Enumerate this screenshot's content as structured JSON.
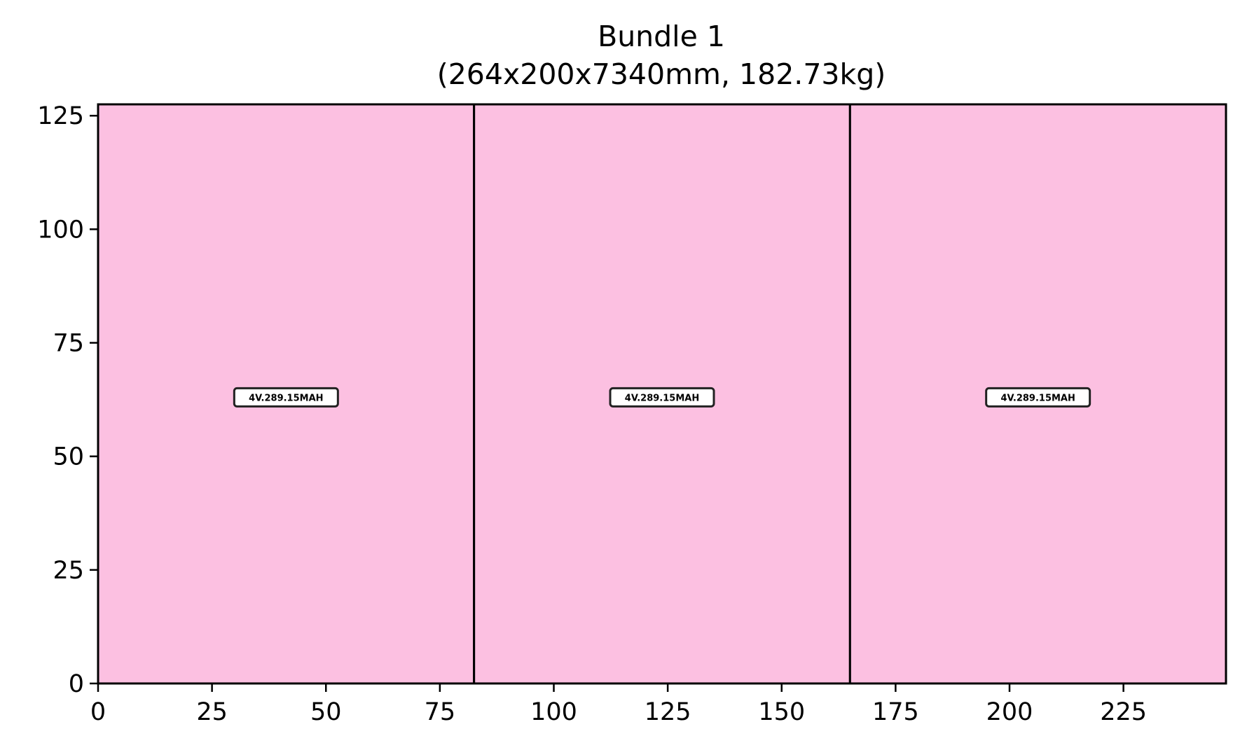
{
  "chart_data": {
    "type": "bar",
    "title_lines": [
      "Bundle 1",
      "(264x200x7340mm, 182.73kg)"
    ],
    "xlabel": "",
    "ylabel": "",
    "xlim": [
      0,
      247.5
    ],
    "ylim": [
      0,
      127.5
    ],
    "xticks": [
      "0",
      "25",
      "50",
      "75",
      "100",
      "125",
      "150",
      "175",
      "200",
      "225"
    ],
    "yticks": [
      "0",
      "25",
      "50",
      "75",
      "100",
      "125"
    ],
    "grid": false,
    "fill_color": "#fcc0e1",
    "edge_color": "#000000",
    "boxes": [
      {
        "label": "4V.289.15MAH",
        "x0": 0,
        "x1": 82.5,
        "y0": 0,
        "y1": 127.5
      },
      {
        "label": "4V.289.15MAH",
        "x0": 82.5,
        "x1": 165,
        "y0": 0,
        "y1": 127.5
      },
      {
        "label": "4V.289.15MAH",
        "x0": 165,
        "x1": 247.5,
        "y0": 0,
        "y1": 127.5
      }
    ]
  }
}
